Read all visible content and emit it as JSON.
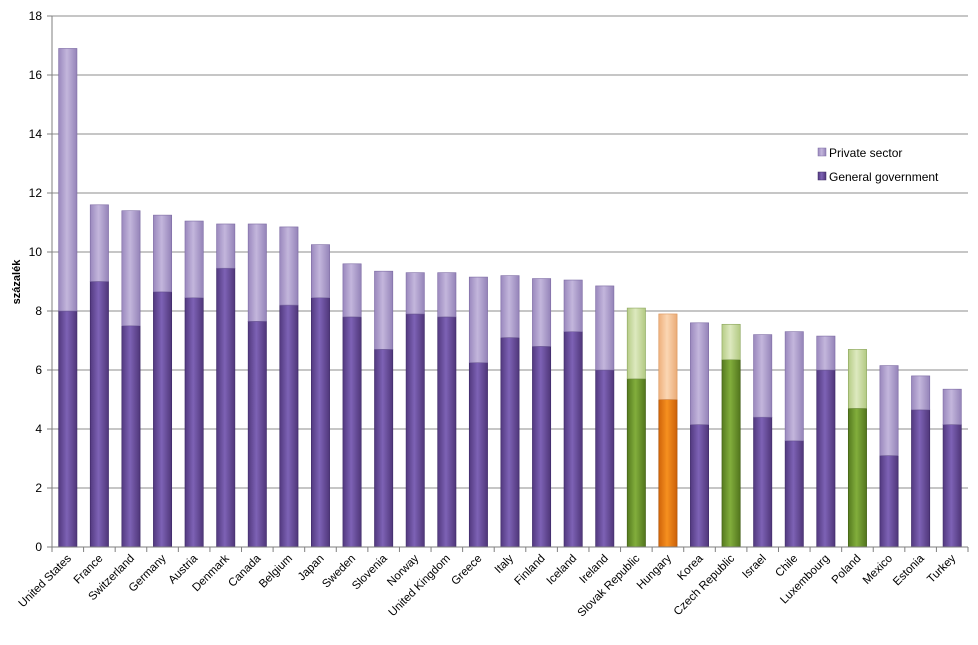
{
  "colors": {
    "gov_default": "#6b4fa3",
    "priv_default": "#b3a3cf",
    "gov_green": "#6f9a2e",
    "priv_green": "#cfe0a8",
    "gov_orange": "#ee7a10",
    "priv_orange": "#f9c89c",
    "gridline": "#8c8c8c",
    "axis": "#7f7f7f"
  },
  "chart_data": {
    "type": "bar",
    "stacked": true,
    "ylabel": "százalék",
    "ylim": [
      0,
      18
    ],
    "yticks": [
      0,
      2,
      4,
      6,
      8,
      10,
      12,
      14,
      16,
      18
    ],
    "grid": true,
    "legend_position": "right",
    "categories": [
      "United States",
      "France",
      "Switzerland",
      "Germany",
      "Austria",
      "Denmark",
      "Canada",
      "Belgium",
      "Japan",
      "Sweden",
      "Slovenia",
      "Norway",
      "United Kingdom",
      "Greece",
      "Italy",
      "Finland",
      "Iceland",
      "Ireland",
      "Slovak Republic",
      "Hungary",
      "Korea",
      "Czech Republic",
      "Israel",
      "Chile",
      "Luxembourg",
      "Poland",
      "Mexico",
      "Estonia",
      "Turkey"
    ],
    "highlight": {
      "Slovak Republic": "green",
      "Hungary": "orange",
      "Czech Republic": "green",
      "Poland": "green"
    },
    "series": [
      {
        "name": "General government",
        "values": [
          8.0,
          9.0,
          7.5,
          8.65,
          8.45,
          9.45,
          7.65,
          8.2,
          8.45,
          7.8,
          6.7,
          7.9,
          7.8,
          6.25,
          7.1,
          6.8,
          7.3,
          6.0,
          5.7,
          5.0,
          4.15,
          6.35,
          4.4,
          3.6,
          6.0,
          4.7,
          3.1,
          4.65,
          4.15
        ]
      },
      {
        "name": "Private sector",
        "values": [
          8.9,
          2.6,
          3.9,
          2.6,
          2.6,
          1.5,
          3.3,
          2.65,
          1.8,
          1.8,
          2.65,
          1.4,
          1.5,
          2.9,
          2.1,
          2.3,
          1.75,
          2.85,
          2.4,
          2.9,
          3.45,
          1.2,
          2.8,
          3.7,
          1.15,
          2.0,
          3.05,
          1.15,
          1.2
        ]
      }
    ]
  },
  "legend": {
    "items": [
      {
        "label": "Private sector",
        "icon": "swatch-light-purple"
      },
      {
        "label": "General government",
        "icon": "swatch-dark-purple"
      }
    ]
  }
}
